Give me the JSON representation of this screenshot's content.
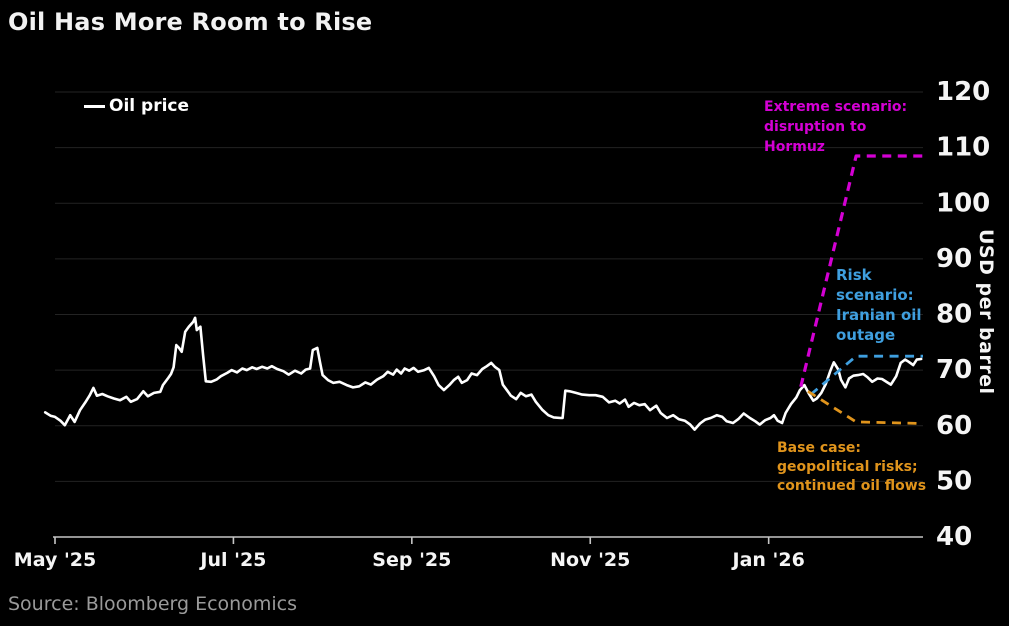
{
  "palette": {
    "bg": "#000000",
    "title_text": "#f2f2f2",
    "tick_text": "#f5f5f5",
    "source_text": "#9a9a9a",
    "grid_line": "#232323",
    "axis_line": "#c6c6c6",
    "legend_text": "#ffffff"
  },
  "chart_data": {
    "type": "line",
    "title": "Oil Has More Room to Rise",
    "ylabel": "USD per barrel",
    "xlabel": "",
    "source": "Source: Bloomberg Economics",
    "grid": "horizontal",
    "legend_position": "top-left",
    "x_axis": {
      "unit": "months since 2025-05-01",
      "range": [
        0,
        9.73
      ],
      "tick_positions": [
        0,
        2,
        4,
        6,
        8
      ],
      "tick_labels": [
        "May '25",
        "Jul '25",
        "Sep '25",
        "Nov '25",
        "Jan '26"
      ]
    },
    "y_axis": {
      "range": [
        40,
        120
      ],
      "ticks": [
        40,
        50,
        60,
        70,
        80,
        90,
        100,
        110,
        120
      ]
    },
    "series": [
      {
        "id": "oil-price",
        "name": "Oil price",
        "color": "#ffffff",
        "style": "solid",
        "width": 2.6,
        "points": [
          [
            -0.11,
            62.4
          ],
          [
            -0.05,
            61.8
          ],
          [
            0,
            61.6
          ],
          [
            0.06,
            60.9
          ],
          [
            0.11,
            60.1
          ],
          [
            0.17,
            61.9
          ],
          [
            0.22,
            60.7
          ],
          [
            0.28,
            62.8
          ],
          [
            0.34,
            64.2
          ],
          [
            0.39,
            65.5
          ],
          [
            0.43,
            66.8
          ],
          [
            0.47,
            65.4
          ],
          [
            0.53,
            65.7
          ],
          [
            0.59,
            65.3
          ],
          [
            0.66,
            64.9
          ],
          [
            0.73,
            64.6
          ],
          [
            0.8,
            65.2
          ],
          [
            0.85,
            64.3
          ],
          [
            0.92,
            64.8
          ],
          [
            0.99,
            66.2
          ],
          [
            1.04,
            65.3
          ],
          [
            1.11,
            65.9
          ],
          [
            1.18,
            66.1
          ],
          [
            1.21,
            67.3
          ],
          [
            1.27,
            68.6
          ],
          [
            1.3,
            69.3
          ],
          [
            1.33,
            70.5
          ],
          [
            1.36,
            74.5
          ],
          [
            1.39,
            74.0
          ],
          [
            1.42,
            73.3
          ],
          [
            1.46,
            76.9
          ],
          [
            1.5,
            77.8
          ],
          [
            1.55,
            78.7
          ],
          [
            1.57,
            79.4
          ],
          [
            1.59,
            77.2
          ],
          [
            1.63,
            77.8
          ],
          [
            1.66,
            72.7
          ],
          [
            1.69,
            68.0
          ],
          [
            1.75,
            67.9
          ],
          [
            1.81,
            68.3
          ],
          [
            1.86,
            68.9
          ],
          [
            1.93,
            69.5
          ],
          [
            1.98,
            70.0
          ],
          [
            2.04,
            69.6
          ],
          [
            2.1,
            70.3
          ],
          [
            2.15,
            70.0
          ],
          [
            2.21,
            70.5
          ],
          [
            2.26,
            70.2
          ],
          [
            2.32,
            70.6
          ],
          [
            2.38,
            70.3
          ],
          [
            2.43,
            70.7
          ],
          [
            2.49,
            70.2
          ],
          [
            2.56,
            69.8
          ],
          [
            2.62,
            69.2
          ],
          [
            2.69,
            69.9
          ],
          [
            2.76,
            69.4
          ],
          [
            2.81,
            70.1
          ],
          [
            2.86,
            70.3
          ],
          [
            2.89,
            73.6
          ],
          [
            2.94,
            74.0
          ],
          [
            2.97,
            71.5
          ],
          [
            3.0,
            69.1
          ],
          [
            3.06,
            68.2
          ],
          [
            3.12,
            67.7
          ],
          [
            3.19,
            67.9
          ],
          [
            3.27,
            67.3
          ],
          [
            3.34,
            66.9
          ],
          [
            3.41,
            67.1
          ],
          [
            3.48,
            67.8
          ],
          [
            3.54,
            67.4
          ],
          [
            3.61,
            68.3
          ],
          [
            3.68,
            68.9
          ],
          [
            3.73,
            69.7
          ],
          [
            3.79,
            69.2
          ],
          [
            3.83,
            70.1
          ],
          [
            3.88,
            69.4
          ],
          [
            3.92,
            70.3
          ],
          [
            3.97,
            69.9
          ],
          [
            4.02,
            70.4
          ],
          [
            4.07,
            69.7
          ],
          [
            4.14,
            70.0
          ],
          [
            4.19,
            70.4
          ],
          [
            4.25,
            68.9
          ],
          [
            4.3,
            67.3
          ],
          [
            4.36,
            66.4
          ],
          [
            4.42,
            67.3
          ],
          [
            4.47,
            68.2
          ],
          [
            4.52,
            68.8
          ],
          [
            4.56,
            67.7
          ],
          [
            4.62,
            68.2
          ],
          [
            4.67,
            69.4
          ],
          [
            4.73,
            69.1
          ],
          [
            4.79,
            70.2
          ],
          [
            4.84,
            70.7
          ],
          [
            4.89,
            71.3
          ],
          [
            4.93,
            70.6
          ],
          [
            4.98,
            70.0
          ],
          [
            5.02,
            67.4
          ],
          [
            5.07,
            66.3
          ],
          [
            5.11,
            65.4
          ],
          [
            5.17,
            64.8
          ],
          [
            5.22,
            65.9
          ],
          [
            5.28,
            65.3
          ],
          [
            5.34,
            65.6
          ],
          [
            5.39,
            64.3
          ],
          [
            5.46,
            62.9
          ],
          [
            5.53,
            61.9
          ],
          [
            5.59,
            61.5
          ],
          [
            5.67,
            61.4
          ],
          [
            5.69,
            61.4
          ],
          [
            5.72,
            66.3
          ],
          [
            5.77,
            66.2
          ],
          [
            5.84,
            65.9
          ],
          [
            5.91,
            65.6
          ],
          [
            5.99,
            65.5
          ],
          [
            6.06,
            65.5
          ],
          [
            6.14,
            65.2
          ],
          [
            6.21,
            64.2
          ],
          [
            6.28,
            64.5
          ],
          [
            6.33,
            64.0
          ],
          [
            6.39,
            64.7
          ],
          [
            6.43,
            63.4
          ],
          [
            6.49,
            64.1
          ],
          [
            6.55,
            63.7
          ],
          [
            6.61,
            63.9
          ],
          [
            6.67,
            62.8
          ],
          [
            6.74,
            63.6
          ],
          [
            6.79,
            62.3
          ],
          [
            6.86,
            61.4
          ],
          [
            6.93,
            61.9
          ],
          [
            6.99,
            61.2
          ],
          [
            7.06,
            60.9
          ],
          [
            7.12,
            60.2
          ],
          [
            7.17,
            59.3
          ],
          [
            7.23,
            60.4
          ],
          [
            7.29,
            61.1
          ],
          [
            7.35,
            61.4
          ],
          [
            7.42,
            61.9
          ],
          [
            7.48,
            61.6
          ],
          [
            7.53,
            60.8
          ],
          [
            7.6,
            60.5
          ],
          [
            7.66,
            61.2
          ],
          [
            7.72,
            62.2
          ],
          [
            7.79,
            61.4
          ],
          [
            7.85,
            60.8
          ],
          [
            7.9,
            60.2
          ],
          [
            7.96,
            61.0
          ],
          [
            8.02,
            61.4
          ],
          [
            8.06,
            61.9
          ],
          [
            8.1,
            60.9
          ],
          [
            8.15,
            60.5
          ],
          [
            8.19,
            62.3
          ],
          [
            8.25,
            63.9
          ],
          [
            8.31,
            65.1
          ],
          [
            8.35,
            66.4
          ],
          [
            8.4,
            67.3
          ],
          [
            8.45,
            65.8
          ],
          [
            8.5,
            64.5
          ],
          [
            8.54,
            64.9
          ],
          [
            8.59,
            65.9
          ],
          [
            8.64,
            67.5
          ],
          [
            8.69,
            69.8
          ],
          [
            8.73,
            71.4
          ],
          [
            8.78,
            70.1
          ],
          [
            8.81,
            68.3
          ],
          [
            8.86,
            66.9
          ],
          [
            8.9,
            68.5
          ],
          [
            8.95,
            69.0
          ],
          [
            9.0,
            69.1
          ],
          [
            9.06,
            69.3
          ],
          [
            9.11,
            68.7
          ],
          [
            9.16,
            67.9
          ],
          [
            9.22,
            68.5
          ],
          [
            9.27,
            68.4
          ],
          [
            9.33,
            67.8
          ],
          [
            9.37,
            67.4
          ],
          [
            9.43,
            68.9
          ],
          [
            9.48,
            71.3
          ],
          [
            9.53,
            71.9
          ],
          [
            9.57,
            71.5
          ],
          [
            9.62,
            70.9
          ],
          [
            9.66,
            71.9
          ],
          [
            9.71,
            72.0
          ]
        ]
      },
      {
        "id": "extreme-scenario",
        "name": "Extreme scenario: disruption to Hormuz",
        "color": "#d400d4",
        "style": "dashed",
        "width": 3.2,
        "points": [
          [
            8.36,
            67.0
          ],
          [
            8.98,
            108.5
          ],
          [
            9.73,
            108.5
          ]
        ]
      },
      {
        "id": "risk-scenario",
        "name": "Risk scenario: Iranian oil outage",
        "color": "#3f9fdf",
        "style": "dashed",
        "width": 2.8,
        "points": [
          [
            8.47,
            65.6
          ],
          [
            8.98,
            72.5
          ],
          [
            9.73,
            72.5
          ]
        ]
      },
      {
        "id": "base-case",
        "name": "Base case: geopolitical risks; continued oil flows",
        "color": "#e0941c",
        "style": "dashed",
        "width": 2.8,
        "points": [
          [
            8.44,
            66.2
          ],
          [
            8.98,
            60.7
          ],
          [
            9.73,
            60.4
          ]
        ]
      }
    ],
    "annotations": [
      {
        "id": "extreme-scenario-label",
        "text": "Extreme scenario:\ndisruption to\nHormuz",
        "color": "#d400d4"
      },
      {
        "id": "risk-scenario-label",
        "text": "Risk\nscenario:\nIranian oil\noutage",
        "color": "#3f9fdf"
      },
      {
        "id": "base-case-label",
        "text": "Base case:\ngeopolitical risks;\ncontinued oil flows",
        "color": "#e0941c"
      }
    ]
  }
}
